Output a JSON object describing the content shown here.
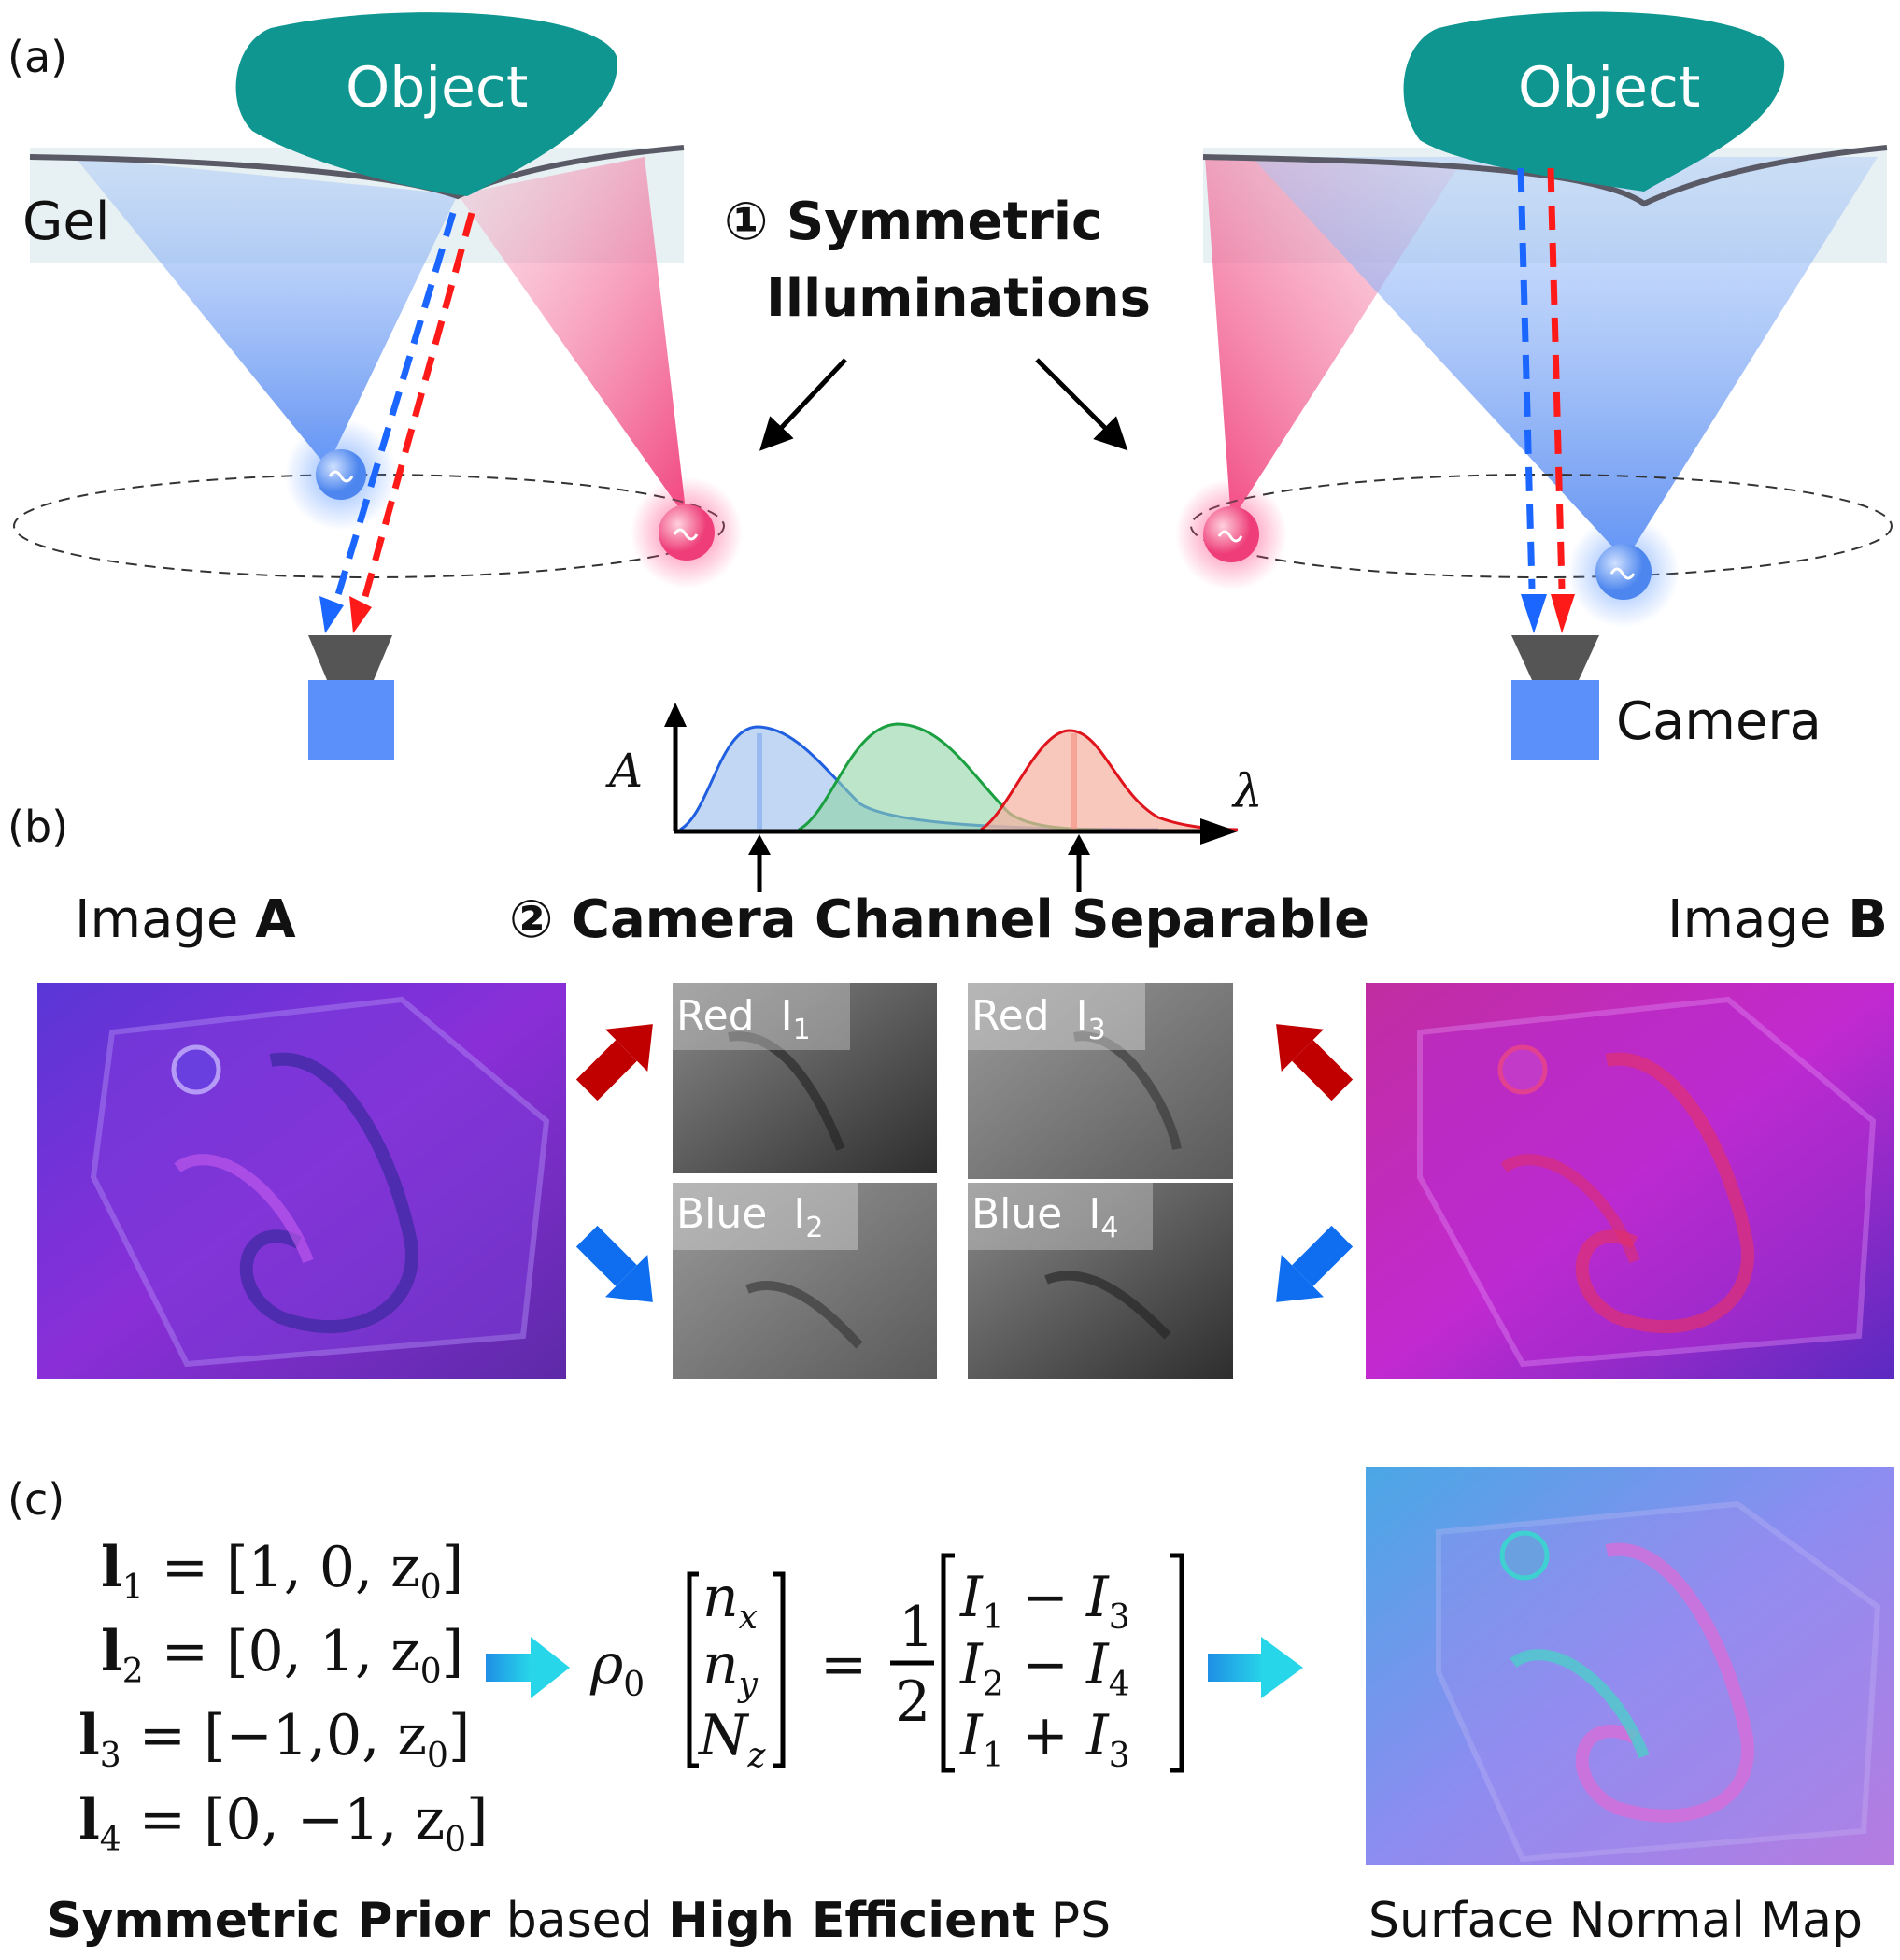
{
  "panels": {
    "a": "(a)",
    "b": "(b)",
    "c": "(c)"
  },
  "object_label": "Object",
  "gel_label": "Gel",
  "camera_label": "Camera",
  "step1": {
    "num": "①",
    "line1": "Symmetric",
    "line2": "Illuminations"
  },
  "spectrum": {
    "y_axis": "A",
    "x_axis": "λ"
  },
  "step2": {
    "num": "②",
    "text": "Camera Channel Separable"
  },
  "image_a": {
    "prefix": "Image ",
    "bold": "A"
  },
  "image_b": {
    "prefix": "Image ",
    "bold": "B"
  },
  "channels": [
    {
      "name": "Red",
      "label": "I",
      "sub": "1"
    },
    {
      "name": "Blue",
      "label": "I",
      "sub": "2"
    },
    {
      "name": "Red",
      "label": "I",
      "sub": "3"
    },
    {
      "name": "Blue",
      "label": "I",
      "sub": "4"
    }
  ],
  "lights": [
    {
      "lhs": "l",
      "sub": "1",
      "rhs": "= [1, 0, z",
      "zsub": "0",
      "close": "]"
    },
    {
      "lhs": "l",
      "sub": "2",
      "rhs": "= [0, 1, z",
      "zsub": "0",
      "close": "]"
    },
    {
      "lhs": "l",
      "sub": "3",
      "rhs": "= [−1,0, z",
      "zsub": "0",
      "close": "]"
    },
    {
      "lhs": "l",
      "sub": "4",
      "rhs": "= [0, −1, z",
      "zsub": "0",
      "close": "]"
    }
  ],
  "equation": {
    "rho": "ρ",
    "rho_sub": "0",
    "left_vec": [
      [
        "n",
        "x"
      ],
      [
        "n",
        "y"
      ],
      [
        "N",
        "z"
      ]
    ],
    "frac_num": "1",
    "frac_den": "2",
    "right_vec": [
      [
        "I",
        "1",
        " − ",
        "I",
        "3"
      ],
      [
        "I",
        "2",
        " − ",
        "I",
        "4"
      ],
      [
        "I",
        "1",
        " + ",
        "I",
        "3"
      ]
    ],
    "equals": "="
  },
  "bottom_left": {
    "b1": "Symmetric Prior",
    "n1": " based ",
    "b2": "High Efficient",
    "n2": " PS"
  },
  "bottom_right": "Surface Normal Map",
  "colors": {
    "object": "#0f9690",
    "blue_light": "#6a9ef5",
    "red_light": "#ef3f78",
    "arrow_red": "#c00000",
    "arrow_blue": "#0f6ef0",
    "camera": "#5b8ff9",
    "gel": "#e8f1f3"
  }
}
